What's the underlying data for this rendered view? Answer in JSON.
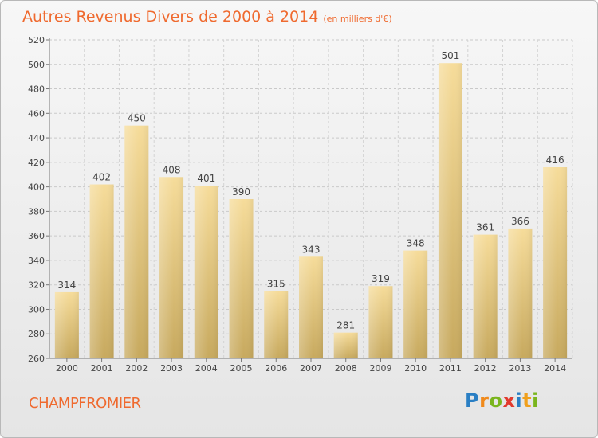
{
  "title": "Autres Revenus Divers de 2000 à 2014",
  "unit": "(en milliers d'€)",
  "commune": "CHAMPFROMIER",
  "logo": {
    "letters": [
      "P",
      "r",
      "o",
      "x",
      "i",
      "t",
      "i"
    ],
    "colors": [
      "#2a7fc4",
      "#f08a1c",
      "#7ab51d",
      "#e23a2d",
      "#2a7fc4",
      "#f0a01c",
      "#7ab51d"
    ]
  },
  "chart_data": {
    "type": "bar",
    "categories": [
      "2000",
      "2001",
      "2002",
      "2003",
      "2004",
      "2005",
      "2006",
      "2007",
      "2008",
      "2009",
      "2010",
      "2011",
      "2012",
      "2013",
      "2014"
    ],
    "values": [
      314,
      402,
      450,
      408,
      401,
      390,
      315,
      343,
      281,
      319,
      348,
      501,
      361,
      366,
      416
    ],
    "ylim": [
      260,
      520
    ],
    "yticks": [
      260,
      280,
      300,
      320,
      340,
      360,
      380,
      400,
      420,
      440,
      460,
      480,
      500,
      520
    ],
    "grid": true,
    "bar_color": "#e6c77c"
  }
}
